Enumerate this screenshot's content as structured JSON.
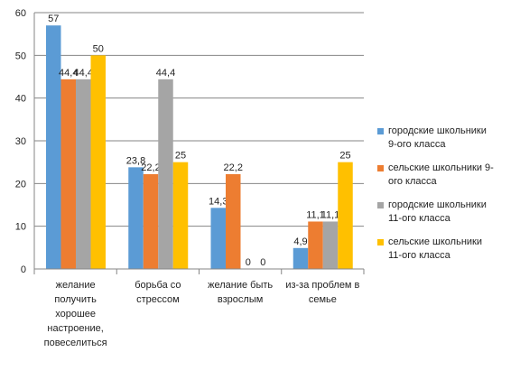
{
  "chart_data": {
    "type": "bar",
    "categories": [
      "желание получить хорошее настроение, повеселиться",
      "борьба со стрессом",
      "желание быть взрослым",
      "из-за проблем в семье"
    ],
    "category_label_lines": [
      [
        "желание",
        "получить",
        "хорошее",
        "настроение,",
        "повеселиться"
      ],
      [
        "борьба со",
        "стрессом"
      ],
      [
        "желание быть",
        "взрослым"
      ],
      [
        "из-за проблем в",
        "семье"
      ]
    ],
    "series": [
      {
        "name": "городские школьники 9-ого класса",
        "legend_lines": [
          "городские школьники",
          "9-ого класса"
        ],
        "color": "#5B9BD5",
        "values": [
          57,
          23.8,
          14.3,
          4.9
        ],
        "labels": [
          "57",
          "23,8",
          "14,3",
          "4,9"
        ]
      },
      {
        "name": "сельские школьники 9-ого класса",
        "legend_lines": [
          "сельские школьники  9-",
          "ого класса"
        ],
        "color": "#ED7D31",
        "values": [
          44.4,
          22.2,
          22.2,
          11.1
        ],
        "labels": [
          "44,4",
          "22,2",
          "22,2",
          "11,1"
        ]
      },
      {
        "name": "городские школьники 11-ого класса",
        "legend_lines": [
          "городские школьники",
          "11-ого класса"
        ],
        "color": "#A5A5A5",
        "values": [
          44.4,
          44.4,
          0,
          11.1
        ],
        "labels": [
          "44,4",
          "44,4",
          "0",
          "11,1"
        ]
      },
      {
        "name": "сельские школьники 11-ого класса",
        "legend_lines": [
          "сельские школьники",
          "11-ого класса"
        ],
        "color": "#FFC000",
        "values": [
          50,
          25,
          0,
          25
        ],
        "labels": [
          "50",
          "25",
          "0",
          "25"
        ]
      }
    ],
    "ylim": [
      0,
      60
    ],
    "yticks": [
      0,
      10,
      20,
      30,
      40,
      50,
      60
    ],
    "grid": true,
    "legend": "right",
    "title": "",
    "xlabel": "",
    "ylabel": ""
  }
}
